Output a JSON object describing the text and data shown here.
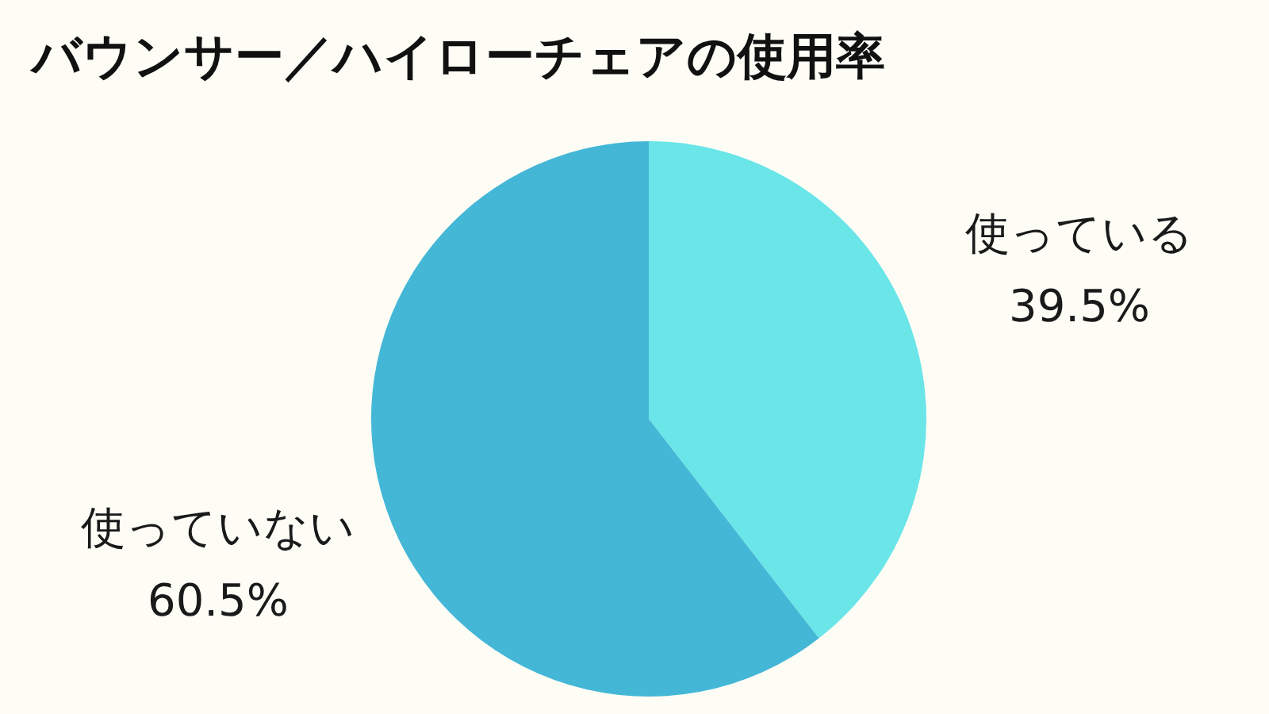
{
  "chart_data": {
    "type": "pie",
    "title": "バウンサー／ハイローチェアの使用率",
    "categories": [
      "使っている",
      "使っていない"
    ],
    "values": [
      39.5,
      60.5
    ],
    "colors": [
      "#6ae5e8",
      "#44b7d6"
    ],
    "value_labels": [
      "39.5%",
      "60.5%"
    ],
    "legend": false
  }
}
